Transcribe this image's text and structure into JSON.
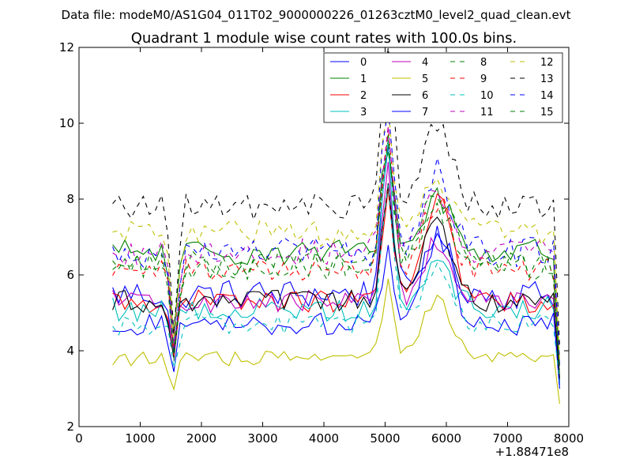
{
  "chart_data": {
    "type": "line",
    "suptitle": "Data file: modeM0/AS1G04_011T02_9000000226_01263cztM0_level2_quad_clean.evt",
    "title": "Quadrant 1 module wise count rates with 100.0s bins.",
    "xlabel": "",
    "ylabel": "",
    "x_offset_label": "+1.88471e8",
    "xlim": [
      0,
      8000
    ],
    "ylim": [
      2,
      12
    ],
    "xticks": [
      0,
      1000,
      2000,
      3000,
      4000,
      5000,
      6000,
      7000,
      8000
    ],
    "xtick_labels": [
      "0",
      "1000",
      "2000",
      "3000",
      "4000",
      "5000",
      "6000",
      "7000",
      "8000"
    ],
    "yticks": [
      2,
      4,
      6,
      8,
      10,
      12
    ],
    "ytick_labels": [
      "2",
      "4",
      "6",
      "8",
      "10",
      "12"
    ],
    "grid": false,
    "legend_position": "top-right",
    "legend_columns": 4,
    "x_start": 550,
    "x_step": 100,
    "series": [
      {
        "name": "0",
        "color": "#0000ff",
        "dash": "solid",
        "base": 5.5,
        "noise": 0.4,
        "dip": 1.7,
        "peak": 4.3,
        "hump": 1.4,
        "end": 3.1
      },
      {
        "name": "1",
        "color": "#008000",
        "dash": "solid",
        "base": 6.6,
        "noise": 0.35,
        "dip": 2.3,
        "peak": 3.0,
        "hump": 1.5,
        "end": 3.3
      },
      {
        "name": "2",
        "color": "#ff0000",
        "dash": "solid",
        "base": 5.3,
        "noise": 0.3,
        "dip": 1.4,
        "peak": 2.7,
        "hump": 2.8,
        "end": 3.2
      },
      {
        "name": "3",
        "color": "#00bfbf",
        "dash": "solid",
        "base": 5.1,
        "noise": 0.35,
        "dip": 1.1,
        "peak": 4.2,
        "hump": 1.4,
        "end": 3.1
      },
      {
        "name": "4",
        "color": "#bf00bf",
        "dash": "solid",
        "base": 5.3,
        "noise": 0.3,
        "dip": 1.4,
        "peak": 3.5,
        "hump": 1.6,
        "end": 3.2
      },
      {
        "name": "5",
        "color": "#bfbf00",
        "dash": "solid",
        "base": 3.8,
        "noise": 0.2,
        "dip": 1.0,
        "peak": 2.0,
        "hump": 1.5,
        "end": 2.6
      },
      {
        "name": "6",
        "color": "#000000",
        "dash": "solid",
        "base": 5.3,
        "noise": 0.3,
        "dip": 1.2,
        "peak": 3.0,
        "hump": 2.1,
        "end": 3.2
      },
      {
        "name": "7",
        "color": "#0000ff",
        "dash": "solid",
        "base": 4.7,
        "noise": 0.3,
        "dip": 1.0,
        "peak": 2.0,
        "hump": 2.4,
        "end": 3.0
      },
      {
        "name": "8",
        "color": "#008000",
        "dash": "dashed",
        "base": 6.3,
        "noise": 0.35,
        "dip": 2.3,
        "peak": 3.4,
        "hump": 1.9,
        "end": 3.6
      },
      {
        "name": "9",
        "color": "#ff0000",
        "dash": "dashed",
        "base": 6.1,
        "noise": 0.35,
        "dip": 2.0,
        "peak": 3.8,
        "hump": 1.9,
        "end": 3.8
      },
      {
        "name": "10",
        "color": "#00bfbf",
        "dash": "dashed",
        "base": 4.7,
        "noise": 0.3,
        "dip": 1.0,
        "peak": 3.7,
        "hump": 1.4,
        "end": 3.2
      },
      {
        "name": "11",
        "color": "#bf00bf",
        "dash": "dashed",
        "base": 6.6,
        "noise": 0.35,
        "dip": 2.2,
        "peak": 3.4,
        "hump": 1.5,
        "end": 3.6
      },
      {
        "name": "12",
        "color": "#bfbf00",
        "dash": "dashed",
        "base": 7.1,
        "noise": 0.35,
        "dip": 2.7,
        "peak": 3.5,
        "hump": 1.5,
        "end": 3.7
      },
      {
        "name": "13",
        "color": "#000000",
        "dash": "dashed",
        "base": 7.8,
        "noise": 0.35,
        "dip": 3.3,
        "peak": 4.6,
        "hump": 2.2,
        "end": 4.1
      },
      {
        "name": "14",
        "color": "#0000ff",
        "dash": "dashed",
        "base": 6.6,
        "noise": 0.4,
        "dip": 2.6,
        "peak": 4.0,
        "hump": 2.1,
        "end": 3.6
      },
      {
        "name": "15",
        "color": "#008000",
        "dash": "dashed",
        "base": 6.2,
        "noise": 0.35,
        "dip": 2.2,
        "peak": 3.6,
        "hump": 1.5,
        "end": 3.5
      }
    ]
  }
}
